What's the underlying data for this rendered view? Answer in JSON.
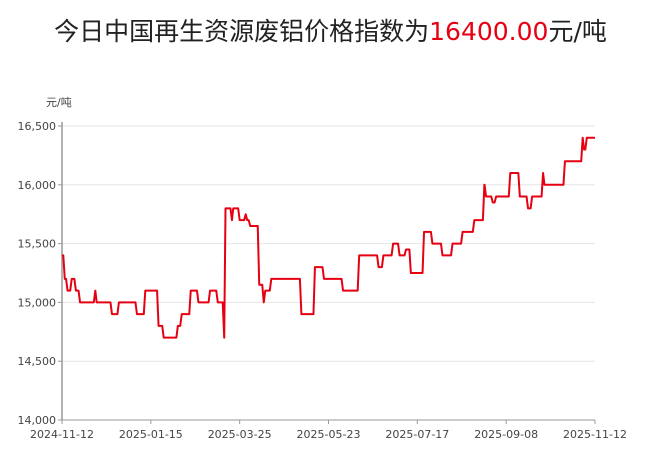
{
  "title": {
    "prefix": "今日中国再生资源废铝价格指数为",
    "value": "16400.00",
    "suffix": "元/吨"
  },
  "colors": {
    "line": "#e60012",
    "highlight": "#e60012",
    "grid": "#e6e6e6",
    "axis": "#999999"
  },
  "chart_data": {
    "type": "line",
    "step": true,
    "ylabel": "元/吨",
    "ylim": [
      14000,
      16500
    ],
    "yticks": [
      14000,
      14500,
      15000,
      15500,
      16000,
      16500
    ],
    "ytick_labels": [
      "14,000",
      "14,500",
      "15,000",
      "15,500",
      "16,000",
      "16,500"
    ],
    "xticks": [
      "2024-11-12",
      "2025-01-15",
      "2025-03-25",
      "2025-05-23",
      "2025-07-17",
      "2025-09-08",
      "2025-11-12"
    ],
    "grid": true,
    "legend": "none",
    "series": [
      {
        "points": [
          [
            "2024-11-12",
            15400
          ],
          [
            "2024-11-14",
            15200
          ],
          [
            "2024-11-16",
            15100
          ],
          [
            "2024-11-19",
            15200
          ],
          [
            "2024-11-22",
            15100
          ],
          [
            "2024-11-25",
            15000
          ],
          [
            "2024-12-06",
            15100
          ],
          [
            "2024-12-07",
            15000
          ],
          [
            "2024-12-18",
            14900
          ],
          [
            "2024-12-23",
            15000
          ],
          [
            "2025-01-05",
            14900
          ],
          [
            "2025-01-11",
            15100
          ],
          [
            "2025-01-21",
            14800
          ],
          [
            "2025-01-25",
            14700
          ],
          [
            "2025-02-05",
            14800
          ],
          [
            "2025-02-08",
            14900
          ],
          [
            "2025-02-15",
            15100
          ],
          [
            "2025-02-21",
            15000
          ],
          [
            "2025-03-02",
            15100
          ],
          [
            "2025-03-08",
            15000
          ],
          [
            "2025-03-13",
            14700
          ],
          [
            "2025-03-14",
            15800
          ],
          [
            "2025-03-19",
            15700
          ],
          [
            "2025-03-20",
            15800
          ],
          [
            "2025-03-25",
            15700
          ],
          [
            "2025-03-29",
            15750
          ],
          [
            "2025-03-30",
            15700
          ],
          [
            "2025-04-01",
            15650
          ],
          [
            "2025-04-07",
            15150
          ],
          [
            "2025-04-10",
            15000
          ],
          [
            "2025-04-11",
            15100
          ],
          [
            "2025-04-15",
            15200
          ],
          [
            "2025-05-05",
            14900
          ],
          [
            "2025-05-09",
            14900
          ],
          [
            "2025-05-14",
            15300
          ],
          [
            "2025-05-20",
            15200
          ],
          [
            "2025-06-01",
            15100
          ],
          [
            "2025-06-11",
            15400
          ],
          [
            "2025-06-23",
            15300
          ],
          [
            "2025-06-26",
            15400
          ],
          [
            "2025-07-02",
            15500
          ],
          [
            "2025-07-06",
            15400
          ],
          [
            "2025-07-10",
            15450
          ],
          [
            "2025-07-13",
            15250
          ],
          [
            "2025-07-21",
            15600
          ],
          [
            "2025-07-26",
            15500
          ],
          [
            "2025-08-01",
            15400
          ],
          [
            "2025-08-07",
            15500
          ],
          [
            "2025-08-13",
            15600
          ],
          [
            "2025-08-20",
            15700
          ],
          [
            "2025-08-26",
            16000
          ],
          [
            "2025-08-27",
            15900
          ],
          [
            "2025-08-31",
            15850
          ],
          [
            "2025-09-02",
            15900
          ],
          [
            "2025-09-11",
            16100
          ],
          [
            "2025-09-18",
            15900
          ],
          [
            "2025-09-24",
            15800
          ],
          [
            "2025-09-27",
            15900
          ],
          [
            "2025-10-05",
            16100
          ],
          [
            "2025-10-06",
            16000
          ],
          [
            "2025-10-21",
            16200
          ],
          [
            "2025-11-03",
            16400
          ],
          [
            "2025-11-04",
            16300
          ],
          [
            "2025-11-06",
            16400
          ],
          [
            "2025-11-12",
            16400
          ]
        ]
      }
    ]
  }
}
